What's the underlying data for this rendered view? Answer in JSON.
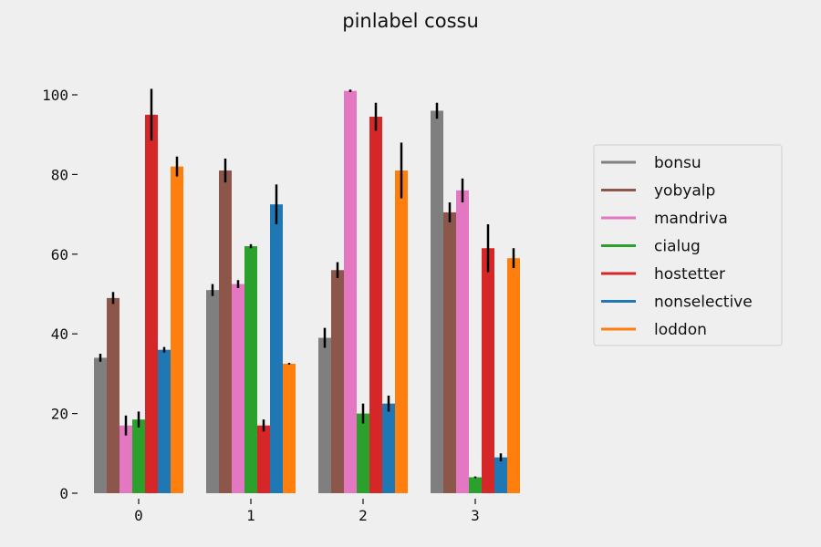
{
  "chart_data": {
    "type": "bar",
    "title": "pinlabel cossu",
    "xlabel": "",
    "ylabel": "",
    "categories": [
      "0",
      "1",
      "2",
      "3"
    ],
    "ylim": [
      0,
      105
    ],
    "yticks": [
      0,
      20,
      40,
      60,
      80,
      100
    ],
    "ytick_labels": [
      "0",
      "20",
      "40",
      "60",
      "80",
      "100"
    ],
    "grid": false,
    "legend": "right",
    "series": [
      {
        "name": "bonsu",
        "color": "#7f7f7f",
        "values": [
          34,
          51,
          39,
          96
        ],
        "errors": [
          1,
          1.5,
          2.5,
          2
        ]
      },
      {
        "name": "yobyalp",
        "color": "#8c564b",
        "values": [
          49,
          81,
          56,
          70.5
        ],
        "errors": [
          1.5,
          3,
          2,
          2.5
        ]
      },
      {
        "name": "mandriva",
        "color": "#e377c2",
        "values": [
          17,
          52.5,
          101,
          76
        ],
        "errors": [
          2.5,
          1,
          0.3,
          3
        ]
      },
      {
        "name": "cialug",
        "color": "#2ca02c",
        "values": [
          18.5,
          62,
          20,
          4
        ],
        "errors": [
          2,
          0.5,
          2.5,
          0.2
        ]
      },
      {
        "name": "hostetter",
        "color": "#d62728",
        "values": [
          95,
          17,
          94.5,
          61.5
        ],
        "errors": [
          6.5,
          1.5,
          3.5,
          6
        ]
      },
      {
        "name": "nonselective",
        "color": "#1f77b4",
        "values": [
          36,
          72.5,
          22.5,
          9
        ],
        "errors": [
          0.7,
          5,
          2,
          1
        ]
      },
      {
        "name": "loddon",
        "color": "#ff7f0e",
        "values": [
          82,
          32.5,
          81,
          59
        ],
        "errors": [
          2.5,
          0.2,
          7,
          2.5
        ]
      }
    ]
  }
}
